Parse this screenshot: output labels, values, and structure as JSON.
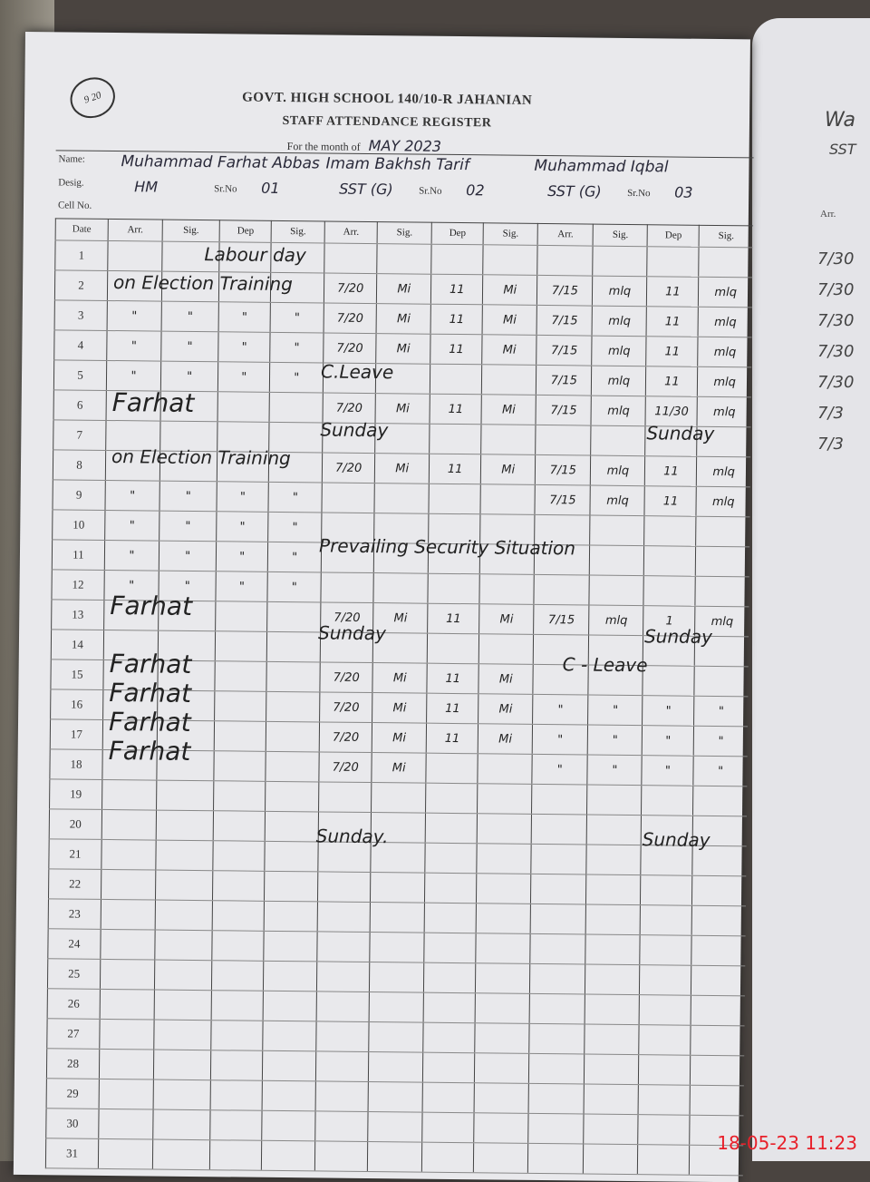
{
  "header": {
    "stamp": "9 20",
    "school": "GOVT. HIGH SCHOOL 140/10-R JAHANIAN",
    "register": "STAFF ATTENDANCE REGISTER",
    "month_label": "For the month of",
    "month_value": "MAY 2023"
  },
  "labels": {
    "name": "Name:",
    "desig": "Desig.",
    "cell": "Cell No.",
    "date": "Date",
    "srno": "Sr.No"
  },
  "staff": [
    {
      "name": "Muhammad Farhat Abbas",
      "desig": "HM",
      "sr": "01"
    },
    {
      "name": "Imam Bakhsh Tarif",
      "desig": "SST (G)",
      "sr": "02"
    },
    {
      "name": "Muhammad Iqbal",
      "desig": "SST (G)",
      "sr": "03"
    }
  ],
  "columns": [
    "Arr.",
    "Sig.",
    "Dep",
    "Sig.",
    "Arr.",
    "Sig.",
    "Dep",
    "Sig.",
    "Arr.",
    "Sig.",
    "Dep",
    "Sig."
  ],
  "rows": [
    {
      "date": "1",
      "cells": [
        "",
        "",
        "",
        "",
        "",
        "",
        "",
        "",
        "",
        "",
        "",
        ""
      ],
      "notes": [
        "Labour day"
      ]
    },
    {
      "date": "2",
      "cells": [
        "",
        "",
        "",
        "",
        "7/20",
        "Mi",
        "11",
        "Mi",
        "7/15",
        "mlq",
        "11",
        "mlq"
      ],
      "notes": [
        "on Election Training"
      ]
    },
    {
      "date": "3",
      "cells": [
        "\"",
        "\"",
        "\"",
        "\"",
        "7/20",
        "Mi",
        "11",
        "Mi",
        "7/15",
        "mlq",
        "11",
        "mlq"
      ],
      "notes": []
    },
    {
      "date": "4",
      "cells": [
        "\"",
        "\"",
        "\"",
        "\"",
        "7/20",
        "Mi",
        "11",
        "Mi",
        "7/15",
        "mlq",
        "11",
        "mlq"
      ],
      "notes": []
    },
    {
      "date": "5",
      "cells": [
        "\"",
        "\"",
        "\"",
        "\"",
        "",
        "",
        "",
        "",
        "7/15",
        "mlq",
        "11",
        "mlq"
      ],
      "notes": [
        "C.Leave"
      ]
    },
    {
      "date": "6",
      "cells": [
        "",
        "",
        "",
        "",
        "7/20",
        "Mi",
        "11",
        "Mi",
        "7/15",
        "mlq",
        "11/30",
        "mlq"
      ],
      "notes": [
        "Farhat"
      ]
    },
    {
      "date": "7",
      "cells": [
        "",
        "",
        "",
        "",
        "",
        "",
        "",
        "",
        "",
        "",
        "",
        ""
      ],
      "notes": [
        "Sunday",
        "Sunday"
      ]
    },
    {
      "date": "8",
      "cells": [
        "",
        "",
        "",
        "",
        "7/20",
        "Mi",
        "11",
        "Mi",
        "7/15",
        "mlq",
        "11",
        "mlq"
      ],
      "notes": [
        "on Election Training"
      ]
    },
    {
      "date": "9",
      "cells": [
        "\"",
        "\"",
        "\"",
        "\"",
        "",
        "",
        "",
        "",
        "7/15",
        "mlq",
        "11",
        "mlq"
      ],
      "notes": []
    },
    {
      "date": "10",
      "cells": [
        "\"",
        "\"",
        "\"",
        "\"",
        "",
        "",
        "",
        "",
        "",
        "",
        "",
        ""
      ],
      "notes": []
    },
    {
      "date": "11",
      "cells": [
        "\"",
        "\"",
        "\"",
        "\"",
        "",
        "",
        "",
        "",
        "",
        "",
        "",
        ""
      ],
      "notes": [
        "Prevailing Security Situation"
      ]
    },
    {
      "date": "12",
      "cells": [
        "\"",
        "\"",
        "\"",
        "\"",
        "",
        "",
        "",
        "",
        "",
        "",
        "",
        ""
      ],
      "notes": []
    },
    {
      "date": "13",
      "cells": [
        "",
        "",
        "",
        "",
        "7/20",
        "Mi",
        "11",
        "Mi",
        "7/15",
        "mlq",
        "1",
        "mlq"
      ],
      "notes": [
        "Farhat"
      ]
    },
    {
      "date": "14",
      "cells": [
        "",
        "",
        "",
        "",
        "",
        "",
        "",
        "",
        "",
        "",
        "",
        ""
      ],
      "notes": [
        "Sunday",
        "Sunday"
      ]
    },
    {
      "date": "15",
      "cells": [
        "",
        "",
        "",
        "",
        "7/20",
        "Mi",
        "11",
        "Mi",
        "",
        "",
        "",
        ""
      ],
      "notes": [
        "Farhat",
        "C - Leave"
      ]
    },
    {
      "date": "16",
      "cells": [
        "",
        "",
        "",
        "",
        "7/20",
        "Mi",
        "11",
        "Mi",
        "\"",
        "\"",
        "\"",
        "\""
      ],
      "notes": [
        "Farhat"
      ]
    },
    {
      "date": "17",
      "cells": [
        "",
        "",
        "",
        "",
        "7/20",
        "Mi",
        "11",
        "Mi",
        "\"",
        "\"",
        "\"",
        "\""
      ],
      "notes": [
        "Farhat"
      ]
    },
    {
      "date": "18",
      "cells": [
        "",
        "",
        "",
        "",
        "7/20",
        "Mi",
        "",
        "",
        "\"",
        "\"",
        "\"",
        "\""
      ],
      "notes": [
        "Farhat"
      ]
    },
    {
      "date": "19",
      "cells": [
        "",
        "",
        "",
        "",
        "",
        "",
        "",
        "",
        "",
        "",
        "",
        ""
      ],
      "notes": []
    },
    {
      "date": "20",
      "cells": [
        "",
        "",
        "",
        "",
        "",
        "",
        "",
        "",
        "",
        "",
        "",
        ""
      ],
      "notes": []
    },
    {
      "date": "21",
      "cells": [
        "",
        "",
        "",
        "",
        "",
        "",
        "",
        "",
        "",
        "",
        "",
        ""
      ],
      "notes": [
        "Sunday.",
        "Sunday"
      ]
    },
    {
      "date": "22",
      "cells": [
        "",
        "",
        "",
        "",
        "",
        "",
        "",
        "",
        "",
        "",
        "",
        ""
      ],
      "notes": []
    },
    {
      "date": "23",
      "cells": [
        "",
        "",
        "",
        "",
        "",
        "",
        "",
        "",
        "",
        "",
        "",
        ""
      ],
      "notes": []
    },
    {
      "date": "24",
      "cells": [
        "",
        "",
        "",
        "",
        "",
        "",
        "",
        "",
        "",
        "",
        "",
        ""
      ],
      "notes": []
    },
    {
      "date": "25",
      "cells": [
        "",
        "",
        "",
        "",
        "",
        "",
        "",
        "",
        "",
        "",
        "",
        ""
      ],
      "notes": []
    },
    {
      "date": "26",
      "cells": [
        "",
        "",
        "",
        "",
        "",
        "",
        "",
        "",
        "",
        "",
        "",
        ""
      ],
      "notes": []
    },
    {
      "date": "27",
      "cells": [
        "",
        "",
        "",
        "",
        "",
        "",
        "",
        "",
        "",
        "",
        "",
        ""
      ],
      "notes": []
    },
    {
      "date": "28",
      "cells": [
        "",
        "",
        "",
        "",
        "",
        "",
        "",
        "",
        "",
        "",
        "",
        ""
      ],
      "notes": []
    },
    {
      "date": "29",
      "cells": [
        "",
        "",
        "",
        "",
        "",
        "",
        "",
        "",
        "",
        "",
        "",
        ""
      ],
      "notes": []
    },
    {
      "date": "30",
      "cells": [
        "",
        "",
        "",
        "",
        "",
        "",
        "",
        "",
        "",
        "",
        "",
        ""
      ],
      "notes": []
    },
    {
      "date": "31",
      "cells": [
        "",
        "",
        "",
        "",
        "",
        "",
        "",
        "",
        "",
        "",
        "",
        ""
      ],
      "notes": []
    }
  ],
  "next_page": {
    "header": "Arr.",
    "name_fragment": "Wa",
    "desig_fragment": "SST",
    "entries": [
      "7/30",
      "7/30",
      "7/30",
      "7/30",
      "7/30",
      "7/3",
      "7/3"
    ]
  },
  "timestamp": "18-05-23  11:23"
}
